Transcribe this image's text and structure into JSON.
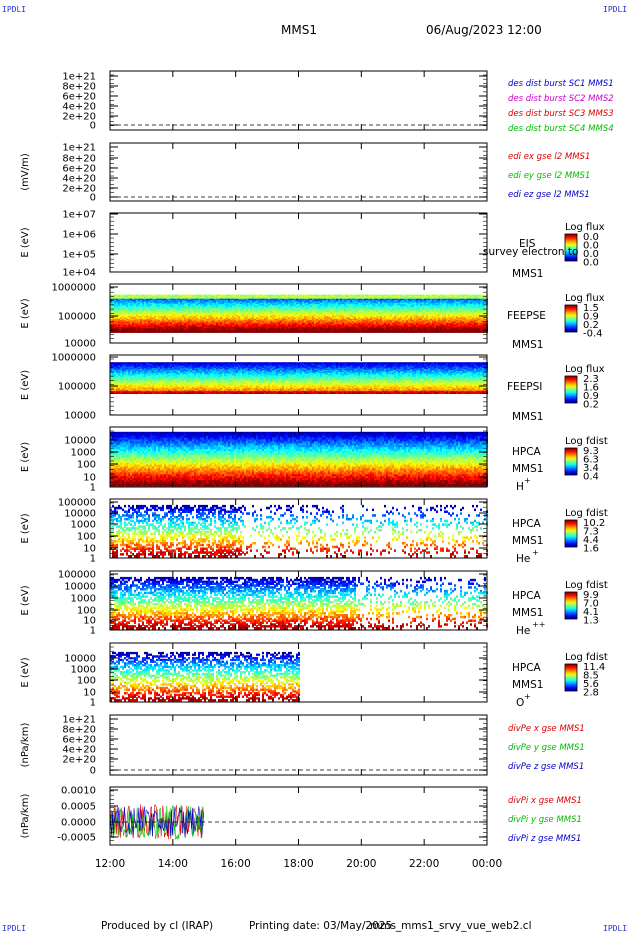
{
  "corner_label": "IPDLI",
  "header": {
    "title": "MMS1",
    "date": "06/Aug/2023 12:00"
  },
  "footer": {
    "produced": "Produced by cl (IRAP)",
    "printing": "Printing date: 03/May/2025",
    "script": "mms_mms1_srvy_vue_web2.cl"
  },
  "chart_data": [
    {
      "type": "line",
      "id": "des",
      "yticks": [
        "1e+21",
        "8e+20",
        "6e+20",
        "4e+20",
        "2e+20",
        "0"
      ],
      "ylabel": "",
      "legend": [
        {
          "text": "des dist burst SC1 MMS1",
          "color": "#0000cc"
        },
        {
          "text": "des dist burst SC2 MMS2",
          "color": "#cc00cc"
        },
        {
          "text": "des dist burst SC3 MMS3",
          "color": "#dd0000"
        },
        {
          "text": "des dist burst SC4 MMS4",
          "color": "#00bb00"
        }
      ],
      "series": []
    },
    {
      "type": "line",
      "id": "edi",
      "yticks": [
        "1e+21",
        "8e+20",
        "6e+20",
        "4e+20",
        "2e+20",
        "0"
      ],
      "ylabel": "(mV/m)",
      "legend": [
        {
          "text": "edi ex gse l2 MMS1",
          "color": "#dd0000"
        },
        {
          "text": "edi ey gse l2 MMS1",
          "color": "#00bb00"
        },
        {
          "text": "edi ez gse l2 MMS1",
          "color": "#0000cc"
        }
      ],
      "series": []
    },
    {
      "type": "heatmap",
      "id": "eis",
      "ylabel": "E (eV)",
      "yticks": [
        "1e+07",
        "1e+06",
        "1e+05",
        "1e+04"
      ],
      "labels": [
        "EIS",
        "MMS1"
      ],
      "overlay": "survey electron to",
      "colorbar": {
        "title": "Log flux",
        "ticks": [
          "0.0",
          "0.0",
          "0.0",
          "0.0"
        ]
      },
      "data_present": false
    },
    {
      "type": "heatmap",
      "id": "feepse",
      "ylabel": "E (eV)",
      "yticks": [
        "1000000",
        "100000",
        "10000"
      ],
      "labels": [
        "FEEPSE",
        "MMS1"
      ],
      "colorbar": {
        "title": "Log flux",
        "ticks": [
          "1.5",
          "0.9",
          "0.2",
          "-0.4"
        ]
      },
      "time_coverage": [
        12,
        24
      ]
    },
    {
      "type": "heatmap",
      "id": "feepsi",
      "ylabel": "E (eV)",
      "yticks": [
        "1000000",
        "100000",
        "10000"
      ],
      "labels": [
        "FEEPSI",
        "MMS1"
      ],
      "colorbar": {
        "title": "Log flux",
        "ticks": [
          "2.3",
          "1.6",
          "0.9",
          "0.2"
        ]
      },
      "time_coverage": [
        12,
        24
      ]
    },
    {
      "type": "heatmap",
      "id": "hpca_h",
      "ylabel": "E (eV)",
      "yticks": [
        "10000",
        "1000",
        "100",
        "10",
        "1"
      ],
      "labels": [
        "HPCA",
        "MMS1"
      ],
      "species": "H",
      "charge": "+",
      "colorbar": {
        "title": "Log fdist",
        "ticks": [
          "9.3",
          "6.3",
          "3.4",
          "0.4"
        ]
      },
      "time_coverage": [
        12,
        24
      ]
    },
    {
      "type": "heatmap",
      "id": "hpca_he",
      "ylabel": "E (eV)",
      "yticks": [
        "100000",
        "10000",
        "1000",
        "100",
        "10",
        "1"
      ],
      "labels": [
        "HPCA",
        "MMS1"
      ],
      "species": "He",
      "charge": "+",
      "colorbar": {
        "title": "Log fdist",
        "ticks": [
          "10.2",
          "7.3",
          "4.4",
          "1.6"
        ]
      },
      "time_coverage": [
        12,
        24
      ]
    },
    {
      "type": "heatmap",
      "id": "hpca_hepp",
      "ylabel": "E (eV)",
      "yticks": [
        "100000",
        "10000",
        "1000",
        "100",
        "10",
        "1"
      ],
      "labels": [
        "HPCA",
        "MMS1"
      ],
      "species": "He",
      "charge": "++",
      "colorbar": {
        "title": "Log fdist",
        "ticks": [
          "9.9",
          "7.0",
          "4.1",
          "1.3"
        ]
      },
      "time_coverage": [
        12,
        24
      ]
    },
    {
      "type": "heatmap",
      "id": "hpca_o",
      "ylabel": "E (eV)",
      "yticks": [
        "10000",
        "1000",
        "100",
        "10",
        "1"
      ],
      "labels": [
        "HPCA",
        "MMS1"
      ],
      "species": "O",
      "charge": "+",
      "colorbar": {
        "title": "Log fdist",
        "ticks": [
          "11.4",
          "8.5",
          "5.6",
          "2.8"
        ]
      },
      "time_coverage": [
        12,
        18
      ]
    },
    {
      "type": "line",
      "id": "divpe",
      "yticks": [
        "1e+21",
        "8e+20",
        "6e+20",
        "4e+20",
        "2e+20",
        "0"
      ],
      "ylabel": "(nPa/km)",
      "legend": [
        {
          "text": "divPe x gse MMS1",
          "color": "#dd0000"
        },
        {
          "text": "divPe y gse MMS1",
          "color": "#00bb00"
        },
        {
          "text": "divPe z gse MMS1",
          "color": "#0000cc"
        }
      ],
      "series": []
    },
    {
      "type": "line",
      "id": "divpi",
      "yticks": [
        "0.0010",
        "0.0005",
        "0.0000",
        "-0.0005"
      ],
      "ylabel": "(nPa/km)",
      "ylim": [
        -0.0008,
        0.001
      ],
      "legend": [
        {
          "text": "divPi x gse MMS1",
          "color": "#dd0000"
        },
        {
          "text": "divPi y gse MMS1",
          "color": "#00bb00"
        },
        {
          "text": "divPi z gse MMS1",
          "color": "#0000cc"
        }
      ],
      "time_coverage": [
        12,
        15
      ]
    }
  ],
  "xaxis": {
    "ticks": [
      "12:00",
      "14:00",
      "16:00",
      "18:00",
      "20:00",
      "22:00",
      "00:00"
    ],
    "range": [
      12,
      24
    ]
  }
}
